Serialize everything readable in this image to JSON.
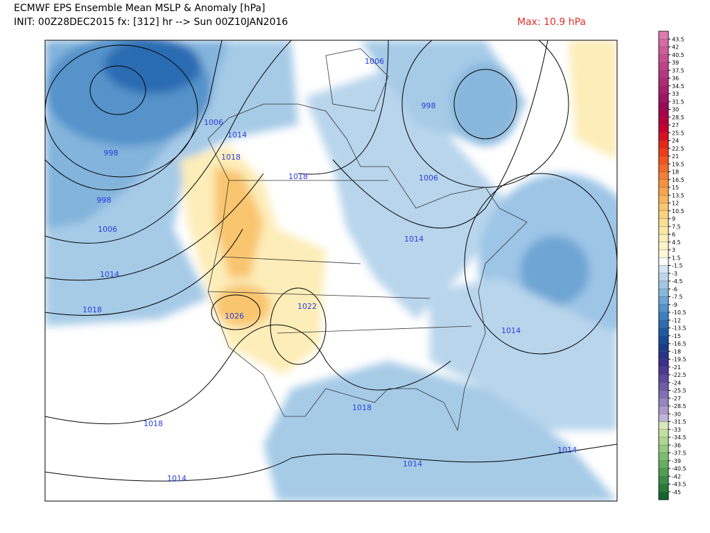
{
  "header": {
    "title": "ECMWF EPS Ensemble Mean MSLP & Anomaly [hPa]",
    "subtitle": "INIT: 00Z28DEC2015 fx: [312] hr --> Sun 00Z10JAN2016",
    "max_label": "Max: 10.9 hPa"
  },
  "map": {
    "contour_labels": [
      "1006",
      "998",
      "1006",
      "1014",
      "998",
      "1018",
      "1018",
      "1006",
      "998",
      "1006",
      "1014",
      "1014",
      "1018",
      "1022",
      "1026",
      "1014",
      "1018",
      "1018",
      "1014",
      "1014",
      "1014"
    ]
  },
  "colorbar": {
    "levels": [
      43.5,
      42,
      40.5,
      39,
      37.5,
      36,
      34.5,
      33,
      31.5,
      30,
      28.5,
      27,
      25.5,
      24,
      22.5,
      21,
      19.5,
      18,
      16.5,
      15,
      13.5,
      12,
      10.5,
      9,
      7.5,
      6,
      4.5,
      3,
      1.5,
      -1.5,
      -3,
      -4.5,
      -6,
      -7.5,
      -9,
      -10.5,
      -12,
      -13.5,
      -15,
      -16.5,
      -18,
      -19.5,
      -21,
      -22.5,
      -24,
      -25.5,
      -27,
      -28.5,
      -30,
      -31.5,
      -33,
      -34.5,
      -36,
      -37.5,
      -39,
      -40.5,
      -42,
      -43.5,
      -45
    ],
    "colors": [
      "#e07bb0",
      "#d86aa5",
      "#d05c9b",
      "#c84e92",
      "#c04288",
      "#b8367f",
      "#b02a76",
      "#a81f6d",
      "#a01464",
      "#980a5a",
      "#a3004a",
      "#b4003a",
      "#c6002c",
      "#d81020",
      "#e52619",
      "#ee3d18",
      "#f25420",
      "#f46a2a",
      "#f57e34",
      "#f5923e",
      "#f6a54c",
      "#f8b65c",
      "#f9c56e",
      "#fbd282",
      "#fcdd94",
      "#fde6a6",
      "#fdedb8",
      "#fef3c8",
      "#fff8d8",
      "#ffffff",
      "#d6e6f3",
      "#bcd7ec",
      "#a2c8e5",
      "#88b7dd",
      "#6ea5d4",
      "#5593ca",
      "#3e7fbf",
      "#2c6cb2",
      "#1f5aa4",
      "#174a96",
      "#1b3c8a",
      "#2a3488",
      "#3a2f8a",
      "#4b3a94",
      "#5c4a9e",
      "#6e5ca8",
      "#8170b4",
      "#9585c0",
      "#aa9bcc",
      "#c0b4da",
      "#d8e8b8",
      "#c4e0a0",
      "#aed690",
      "#96ca80",
      "#7ebd70",
      "#66ae60",
      "#4f9e52",
      "#3a8d45",
      "#277a38",
      "#15662c"
    ]
  }
}
